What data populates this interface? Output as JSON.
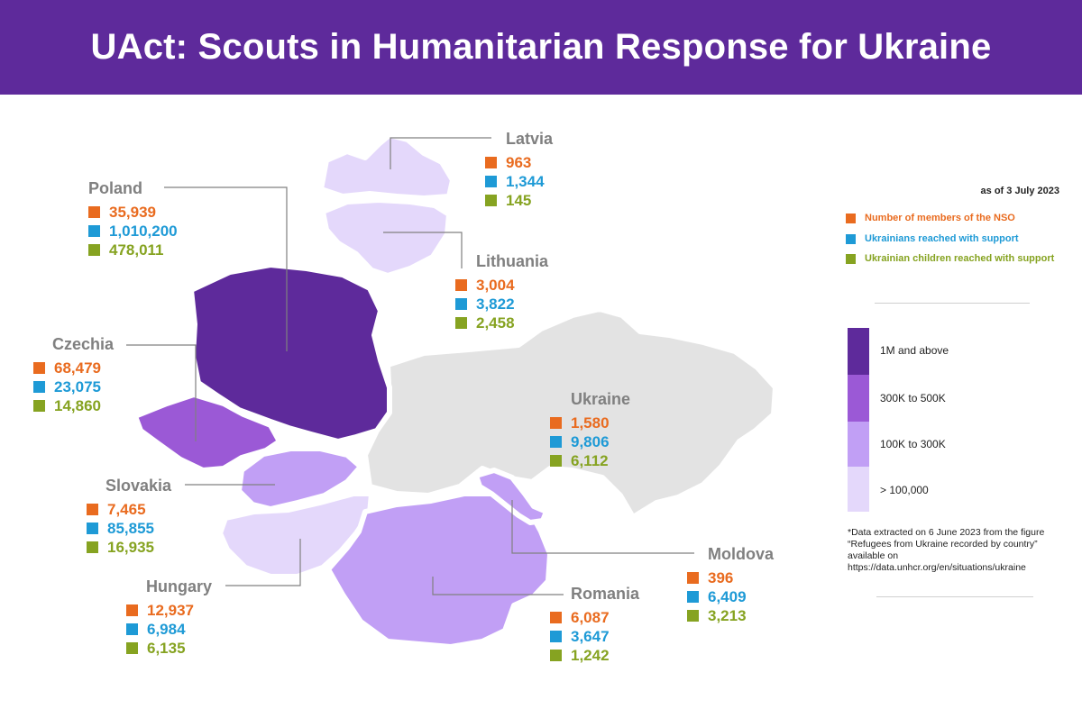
{
  "title": "UAct: Scouts in Humanitarian Response for Ukraine",
  "as_of": "as of 3 July 2023",
  "legend": {
    "members": "Number of members of the NSO",
    "reached": "Ukrainians reached with support",
    "children": "Ukrainian children reached with support",
    "colors": {
      "members": "#e96b1f",
      "reached": "#1e9ad6",
      "children": "#86a321"
    }
  },
  "scale": [
    {
      "label": "1M and above",
      "color": "#5e2a9b"
    },
    {
      "label": "300K to 500K",
      "color": "#9b59d6"
    },
    {
      "label": "100K to 300K",
      "color": "#c19ff5"
    },
    {
      "label": "> 100,000",
      "color": "#e4d8fb"
    }
  ],
  "footnote": "*Data extracted on 6 June 2023 from the figure “Refugees from Ukraine recorded by country” available on https://data.unhcr.org/en/situations/ukraine",
  "countries": {
    "poland": {
      "name": "Poland",
      "members": "35,939",
      "reached": "1,010,200",
      "children": "478,011",
      "fill": "#5e2a9b"
    },
    "latvia": {
      "name": "Latvia",
      "members": "963",
      "reached": "1,344",
      "children": "145",
      "fill": "#e4d8fb"
    },
    "lithuania": {
      "name": "Lithuania",
      "members": "3,004",
      "reached": "3,822",
      "children": "2,458",
      "fill": "#e4d8fb"
    },
    "czechia": {
      "name": "Czechia",
      "members": "68,479",
      "reached": "23,075",
      "children": "14,860",
      "fill": "#9b59d6"
    },
    "ukraine": {
      "name": "Ukraine",
      "members": "1,580",
      "reached": "9,806",
      "children": "6,112",
      "fill": "#e3e3e3"
    },
    "slovakia": {
      "name": "Slovakia",
      "members": "7,465",
      "reached": "85,855",
      "children": "16,935",
      "fill": "#c19ff5"
    },
    "moldova": {
      "name": "Moldova",
      "members": "396",
      "reached": "6,409",
      "children": "3,213",
      "fill": "#c19ff5"
    },
    "romania": {
      "name": "Romania",
      "members": "6,087",
      "reached": "3,647",
      "children": "1,242",
      "fill": "#c19ff5"
    },
    "hungary": {
      "name": "Hungary",
      "members": "12,937",
      "reached": "6,984",
      "children": "6,135",
      "fill": "#e4d8fb"
    }
  }
}
